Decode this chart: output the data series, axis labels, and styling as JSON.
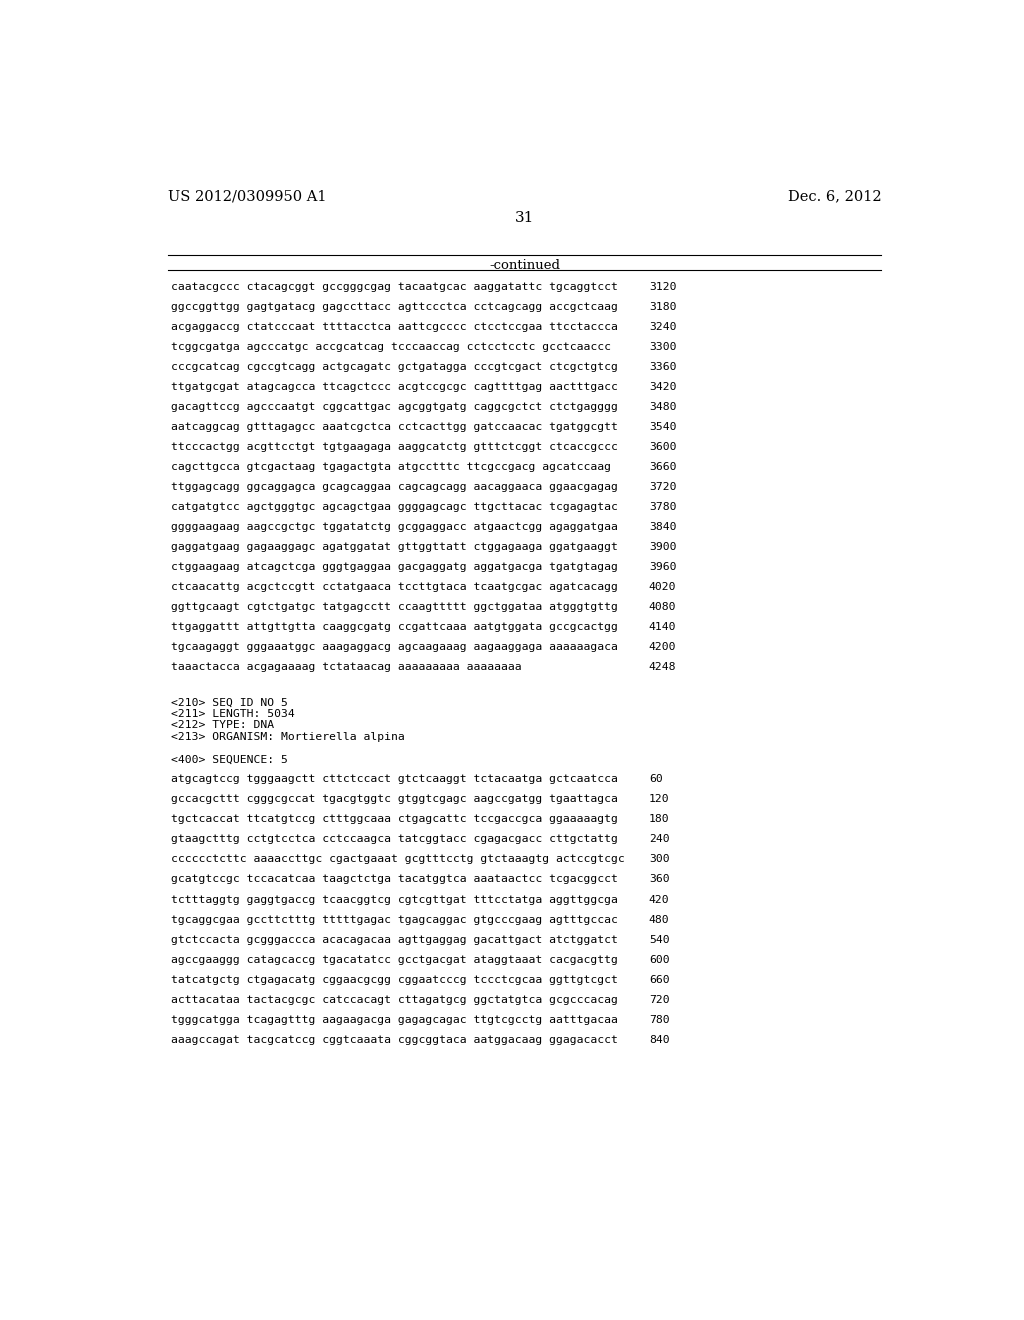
{
  "header_left": "US 2012/0309950 A1",
  "header_right": "Dec. 6, 2012",
  "page_number": "31",
  "continued_label": "-continued",
  "background_color": "#ffffff",
  "text_color": "#000000",
  "sequence_lines_top": [
    [
      "caatacgccc ctacagcggt gccgggcgag tacaatgcac aaggatattc tgcaggtcct",
      "3120"
    ],
    [
      "ggccggttgg gagtgatacg gagccttacc agttccctca cctcagcagg accgctcaag",
      "3180"
    ],
    [
      "acgaggaccg ctatcccaat ttttacctca aattcgcccc ctcctccgaa ttcctaccca",
      "3240"
    ],
    [
      "tcggcgatga agcccatgc accgcatcag tcccaaccag cctcctcctc gcctcaaccc",
      "3300"
    ],
    [
      "cccgcatcag cgccgtcagg actgcagatc gctgatagga cccgtcgact ctcgctgtcg",
      "3360"
    ],
    [
      "ttgatgcgat atagcagcca ttcagctccc acgtccgcgc cagttttgag aactttgacc",
      "3420"
    ],
    [
      "gacagttccg agcccaatgt cggcattgac agcggtgatg caggcgctct ctctgagggg",
      "3480"
    ],
    [
      "aatcaggcag gtttagagcc aaatcgctca cctcacttgg gatccaacac tgatggcgtt",
      "3540"
    ],
    [
      "ttcccactgg acgttcctgt tgtgaagaga aaggcatctg gtttctcggt ctcaccgccc",
      "3600"
    ],
    [
      "cagcttgcca gtcgactaag tgagactgta atgcctttc ttcgccgacg agcatccaag",
      "3660"
    ],
    [
      "ttggagcagg ggcaggagca gcagcaggaa cagcagcagg aacaggaaca ggaacgagag",
      "3720"
    ],
    [
      "catgatgtcc agctgggtgc agcagctgaa ggggagcagc ttgcttacac tcgagagtac",
      "3780"
    ],
    [
      "ggggaagaag aagccgctgc tggatatctg gcggaggacc atgaactcgg agaggatgaa",
      "3840"
    ],
    [
      "gaggatgaag gagaaggagc agatggatat gttggttatt ctggagaaga ggatgaaggt",
      "3900"
    ],
    [
      "ctggaagaag atcagctcga gggtgaggaa gacgaggatg aggatgacga tgatgtagag",
      "3960"
    ],
    [
      "ctcaacattg acgctccgtt cctatgaaca tccttgtaca tcaatgcgac agatcacagg",
      "4020"
    ],
    [
      "ggttgcaagt cgtctgatgc tatgagcctt ccaagttttt ggctggataa atgggtgttg",
      "4080"
    ],
    [
      "ttgaggattt attgttgtta caaggcgatg ccgattcaaa aatgtggata gccgcactgg",
      "4140"
    ],
    [
      "tgcaagaggt gggaaatggc aaagaggacg agcaagaaag aagaaggaga aaaaaagaca",
      "4200"
    ],
    [
      "taaactacca acgagaaaag tctataacag aaaaaaaaa aaaaaaaa",
      "4248"
    ]
  ],
  "metadata_lines": [
    "<210> SEQ ID NO 5",
    "<211> LENGTH: 5034",
    "<212> TYPE: DNA",
    "<213> ORGANISM: Mortierella alpina"
  ],
  "sequence_label": "<400> SEQUENCE: 5",
  "sequence_lines_bottom": [
    [
      "atgcagtccg tgggaagctt cttctccact gtctcaaggt tctacaatga gctcaatcca",
      "60"
    ],
    [
      "gccacgcttt cgggcgccat tgacgtggtc gtggtcgagc aagccgatgg tgaattagca",
      "120"
    ],
    [
      "tgctcaccat ttcatgtccg ctttggcaaa ctgagcattc tccgaccgca ggaaaaagtg",
      "180"
    ],
    [
      "gtaagctttg cctgtcctca cctccaagca tatcggtacc cgagacgacc cttgctattg",
      "240"
    ],
    [
      "cccccctcttc aaaaccttgc cgactgaaat gcgtttcctg gtctaaagtg actccgtcgc",
      "300"
    ],
    [
      "gcatgtccgc tccacatcaa taagctctga tacatggtca aaataactcc tcgacggcct",
      "360"
    ],
    [
      "tctttaggtg gaggtgaccg tcaacggtcg cgtcgttgat tttcctatga aggttggcga",
      "420"
    ],
    [
      "tgcaggcgaa gccttctttg tttttgagac tgagcaggac gtgcccgaag agtttgccac",
      "480"
    ],
    [
      "gtctccacta gcgggaccca acacagacaa agttgaggag gacattgact atctggatct",
      "540"
    ],
    [
      "agccgaaggg catagcaccg tgacatatcc gcctgacgat ataggtaaat cacgacgttg",
      "600"
    ],
    [
      "tatcatgctg ctgagacatg cggaacgcgg cggaatcccg tccctcgcaa ggttgtcgct",
      "660"
    ],
    [
      "acttacataa tactacgcgc catccacagt cttagatgcg ggctatgtca gcgcccacag",
      "720"
    ],
    [
      "tgggcatgga tcagagtttg aagaagacga gagagcagac ttgtcgcctg aatttgacaa",
      "780"
    ],
    [
      "aaagccagat tacgcatccg cggtcaaata cggcggtaca aatggacaag ggagacacct",
      "840"
    ]
  ]
}
